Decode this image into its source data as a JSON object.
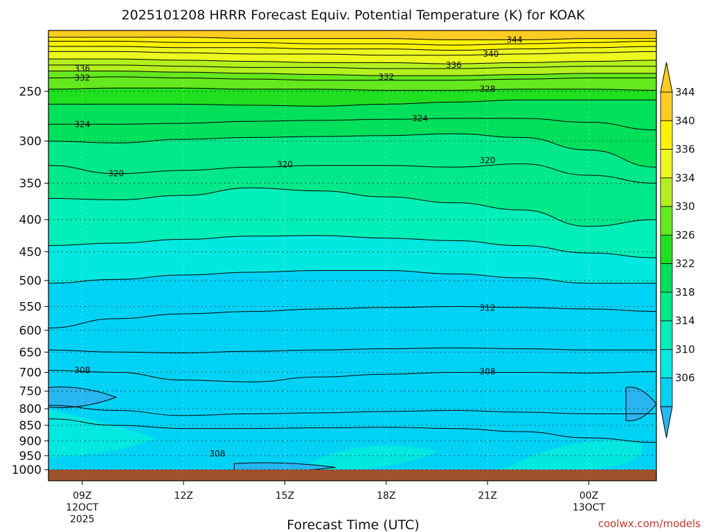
{
  "title": "2025101208 HRRR Forecast Equiv. Potential Temperature (K) for KOAK",
  "credit": "coolwx.com/models",
  "colors": {
    "bands": [
      "#29b6f0",
      "#00d2f5",
      "#00e8e0",
      "#00eeb8",
      "#00e88a",
      "#00e05a",
      "#20e020",
      "#64e81e",
      "#b4f01e",
      "#ecf81e",
      "#fff200",
      "#ffcc22"
    ],
    "ground": "#a0522d",
    "contour": "#000000",
    "credit": "#c0392b"
  },
  "chart_data": {
    "type": "heatmap",
    "title": "2025101208 HRRR Forecast Equiv. Potential Temperature (K) for KOAK",
    "xlabel": "Forecast Time (UTC)",
    "ylabel": "",
    "x_ticks": [
      {
        "label": "09Z",
        "sub1": "12OCT",
        "sub2": "2025",
        "t": 9
      },
      {
        "label": "12Z",
        "sub1": "",
        "sub2": "",
        "t": 12
      },
      {
        "label": "15Z",
        "sub1": "",
        "sub2": "",
        "t": 15
      },
      {
        "label": "18Z",
        "sub1": "",
        "sub2": "",
        "t": 18
      },
      {
        "label": "21Z",
        "sub1": "",
        "sub2": "",
        "t": 21
      },
      {
        "label": "00Z",
        "sub1": "13OCT",
        "sub2": "",
        "t": 24
      }
    ],
    "xlim": [
      8,
      26
    ],
    "y_ticks": [
      250,
      300,
      350,
      400,
      450,
      500,
      550,
      600,
      650,
      700,
      750,
      800,
      850,
      900,
      950,
      1000
    ],
    "y_unit": "hPa",
    "ylim_top": 200,
    "ylim_bottom": 1013,
    "log_pressure": true,
    "grid": "dotted horizontal at each pressure tick",
    "colorbar": {
      "labels": [
        344,
        340,
        336,
        334,
        330,
        326,
        322,
        318,
        314,
        310,
        306
      ],
      "extend": "both"
    },
    "contour_values_shown": [
      344,
      340,
      336,
      332,
      328,
      324,
      320,
      312,
      308
    ],
    "contour_labels": [
      {
        "text": "344",
        "t": 21.8,
        "p": 207
      },
      {
        "text": "340",
        "t": 21.1,
        "p": 218
      },
      {
        "text": "336",
        "t": 9.0,
        "p": 230
      },
      {
        "text": "336",
        "t": 20.0,
        "p": 227
      },
      {
        "text": "332",
        "t": 9.0,
        "p": 238
      },
      {
        "text": "332",
        "t": 18.0,
        "p": 237
      },
      {
        "text": "328",
        "t": 21.0,
        "p": 248
      },
      {
        "text": "324",
        "t": 9.0,
        "p": 282
      },
      {
        "text": "324",
        "t": 19.0,
        "p": 276
      },
      {
        "text": "320",
        "t": 10.0,
        "p": 338
      },
      {
        "text": "320",
        "t": 15.0,
        "p": 327
      },
      {
        "text": "320",
        "t": 21.0,
        "p": 322
      },
      {
        "text": "312",
        "t": 21.0,
        "p": 553
      },
      {
        "text": "308",
        "t": 9.0,
        "p": 695
      },
      {
        "text": "308",
        "t": 21.0,
        "p": 698
      },
      {
        "text": "308",
        "t": 13.0,
        "p": 943
      }
    ],
    "blobs_306": [
      {
        "t0": 8.0,
        "t1": 10.0,
        "p0": 740,
        "p1": 795
      },
      {
        "t0": 25.1,
        "t1": 26.0,
        "p0": 740,
        "p1": 835
      },
      {
        "t0": 13.5,
        "t1": 16.5,
        "p0": 978,
        "p1": 1005
      }
    ]
  }
}
